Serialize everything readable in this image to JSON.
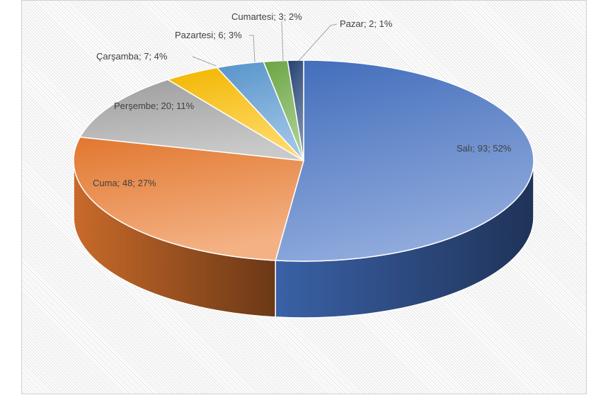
{
  "chart_data": {
    "type": "pie",
    "style": "3d",
    "title": "",
    "categories": [
      "Salı",
      "Cuma",
      "Perşembe",
      "Çarşamba",
      "Pazartesi",
      "Cumartesi",
      "Pazar"
    ],
    "values": [
      93,
      48,
      20,
      7,
      6,
      3,
      2
    ],
    "percents": [
      52,
      27,
      11,
      4,
      3,
      2,
      1
    ],
    "labels": [
      "Salı; 93; 52%",
      "Cuma; 48; 27%",
      "Perşembe; 20; 11%",
      "Çarşamba; 7; 4%",
      "Pazartesi; 6; 3%",
      "Cumartesi; 3; 2%",
      "Pazar; 2; 1%"
    ],
    "colors": [
      "#4472C4",
      "#ED7D31",
      "#A5A5A5",
      "#FFC000",
      "#5B9BD5",
      "#70AD47",
      "#264478"
    ],
    "legend": "none"
  }
}
